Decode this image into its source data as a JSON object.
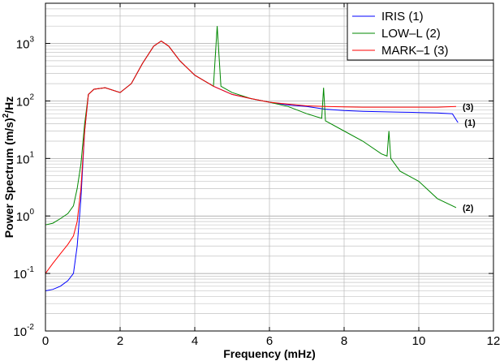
{
  "chart_data": {
    "type": "line",
    "xlabel": "Frequency (mHz)",
    "ylabel_prefix": "Power Spectrum (m/s)",
    "ylabel_sup": "2",
    "ylabel_suffix": "/Hz",
    "xlim": [
      0,
      12
    ],
    "ylim": [
      0.01,
      5000
    ],
    "yscale": "log",
    "grid": true,
    "legend_position": "top-right",
    "x_ticks": [
      "0",
      "2",
      "4",
      "6",
      "8",
      "10",
      "12"
    ],
    "y_ticks": [
      {
        "base": "10",
        "exp": "-2"
      },
      {
        "base": "10",
        "exp": "-1"
      },
      {
        "base": "10",
        "exp": "0"
      },
      {
        "base": "10",
        "exp": "1"
      },
      {
        "base": "10",
        "exp": "2"
      },
      {
        "base": "10",
        "exp": "3"
      }
    ],
    "series": [
      {
        "name": "IRIS  (1)",
        "color": "#0000ff",
        "annotation": "(1)",
        "x": [
          0.0,
          0.2,
          0.4,
          0.6,
          0.75,
          0.85,
          0.95,
          1.05,
          1.15,
          1.3,
          1.6,
          2.0,
          2.3,
          2.6,
          2.9,
          3.1,
          3.3,
          3.6,
          4.0,
          4.5,
          5.0,
          5.5,
          6.0,
          6.5,
          7.0,
          7.5,
          8.0,
          8.5,
          9.0,
          9.5,
          10.0,
          10.5,
          10.9,
          11.05
        ],
        "y": [
          0.05,
          0.053,
          0.06,
          0.075,
          0.1,
          0.3,
          2,
          30,
          130,
          160,
          170,
          140,
          200,
          450,
          900,
          1100,
          900,
          500,
          280,
          180,
          130,
          110,
          95,
          85,
          80,
          72,
          68,
          66,
          65,
          64,
          63,
          62,
          60,
          42
        ]
      },
      {
        "name": "LOW–L (2)",
        "color": "#008800",
        "annotation": "(2)",
        "x": [
          0.0,
          0.2,
          0.4,
          0.6,
          0.75,
          0.85,
          0.95,
          1.05,
          1.15,
          1.3,
          1.6,
          2.0,
          2.3,
          2.6,
          2.9,
          3.1,
          3.3,
          3.6,
          4.0,
          4.5,
          4.6,
          4.7,
          5.0,
          5.5,
          6.0,
          6.5,
          7.0,
          7.4,
          7.45,
          7.5,
          8.0,
          8.5,
          9.0,
          9.15,
          9.2,
          9.25,
          9.5,
          10.0,
          10.5,
          11.0
        ],
        "y": [
          0.7,
          0.75,
          0.9,
          1.1,
          1.5,
          3,
          8,
          40,
          130,
          160,
          170,
          140,
          200,
          450,
          900,
          1100,
          900,
          500,
          280,
          180,
          2000,
          180,
          140,
          110,
          95,
          80,
          60,
          50,
          170,
          45,
          30,
          20,
          12,
          11,
          30,
          10,
          6,
          4,
          2,
          1.4
        ]
      },
      {
        "name": "MARK–1  (3)",
        "color": "#ff0000",
        "annotation": "(3)",
        "x": [
          0.0,
          0.2,
          0.4,
          0.6,
          0.75,
          0.85,
          0.95,
          1.05,
          1.15,
          1.3,
          1.6,
          2.0,
          2.3,
          2.6,
          2.9,
          3.1,
          3.3,
          3.6,
          4.0,
          4.5,
          5.0,
          5.5,
          6.0,
          6.5,
          7.0,
          7.5,
          8.0,
          8.5,
          9.0,
          9.5,
          10.0,
          10.5,
          11.0
        ],
        "y": [
          0.1,
          0.15,
          0.22,
          0.32,
          0.45,
          0.8,
          3,
          30,
          130,
          160,
          170,
          140,
          200,
          450,
          900,
          1100,
          900,
          500,
          280,
          180,
          130,
          110,
          95,
          88,
          82,
          80,
          79,
          78,
          78,
          78,
          78,
          78,
          80
        ]
      }
    ]
  }
}
